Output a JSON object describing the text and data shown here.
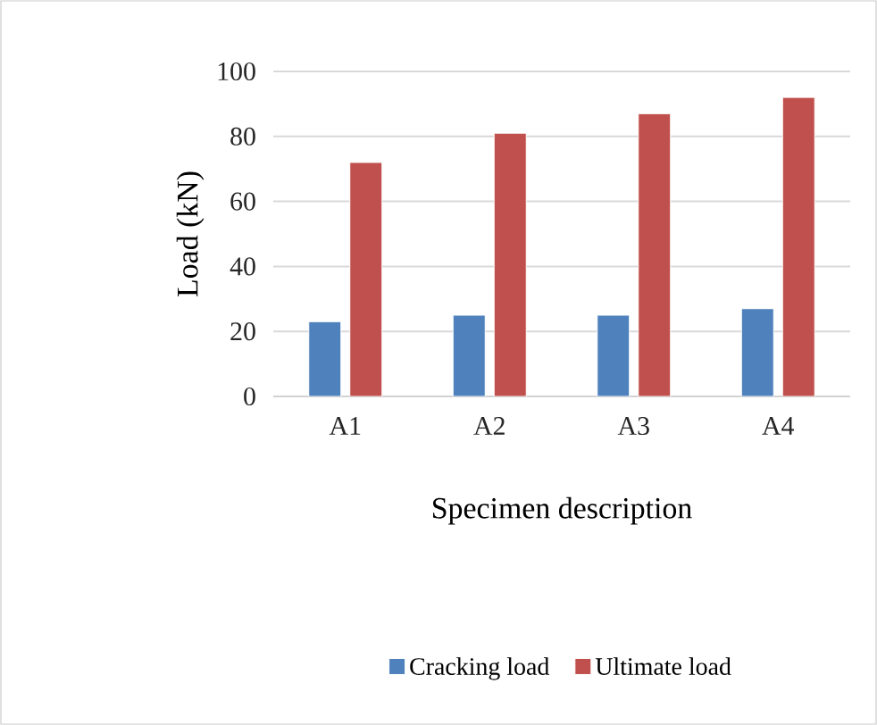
{
  "chart_data": {
    "type": "bar",
    "xlabel": "Specimen description",
    "ylabel": "Load (kN)",
    "categories": [
      "A1",
      "A2",
      "A3",
      "A4"
    ],
    "series": [
      {
        "name": "Cracking load",
        "color": "#4f81bd",
        "values": [
          23,
          25,
          25,
          27
        ]
      },
      {
        "name": "Ultimate load",
        "color": "#c0504d",
        "values": [
          72,
          81,
          87,
          92
        ]
      }
    ],
    "ylim": [
      0,
      100
    ],
    "yticks": [
      0,
      20,
      40,
      60,
      80,
      100
    ],
    "grid": "y",
    "legend": "bottom"
  }
}
